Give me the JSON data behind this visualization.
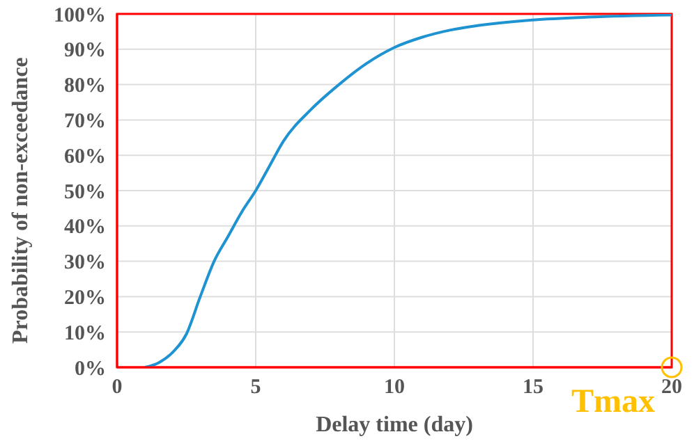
{
  "chart_data": {
    "type": "line",
    "xlabel": "Delay time (day)",
    "ylabel": "Probability of non-exceedance",
    "x": [
      1,
      1.5,
      2,
      2.5,
      3,
      3.5,
      4,
      4.5,
      5,
      5.5,
      6,
      7,
      8,
      9,
      10,
      11,
      12,
      13,
      15,
      17,
      20
    ],
    "series": [
      {
        "color": "#1f93d1",
        "values": [
          0,
          1.3,
          4.2,
          9.4,
          20,
          30,
          37,
          44,
          50,
          57,
          64,
          73,
          80,
          86,
          90.5,
          93.4,
          95.4,
          96.7,
          98.3,
          99.1,
          99.7
        ]
      }
    ],
    "xlim": [
      0,
      20
    ],
    "xticks": [
      0,
      5,
      10,
      15,
      20
    ],
    "ylim": [
      0,
      100
    ],
    "yticks": [
      {
        "value": 0,
        "label": "0%"
      },
      {
        "value": 10,
        "label": "10%"
      },
      {
        "value": 20,
        "label": "20%"
      },
      {
        "value": 30,
        "label": "30%"
      },
      {
        "value": 40,
        "label": "40%"
      },
      {
        "value": 50,
        "label": "50%"
      },
      {
        "value": 60,
        "label": "60%"
      },
      {
        "value": 70,
        "label": "70%"
      },
      {
        "value": 80,
        "label": "80%"
      },
      {
        "value": 90,
        "label": "90%"
      },
      {
        "value": 100,
        "label": "100%"
      }
    ],
    "grid": true,
    "marker": "none",
    "line_style": "solid",
    "legend": false,
    "annotations": [
      {
        "text": "Tmax",
        "x": 20,
        "y": 0
      }
    ]
  }
}
